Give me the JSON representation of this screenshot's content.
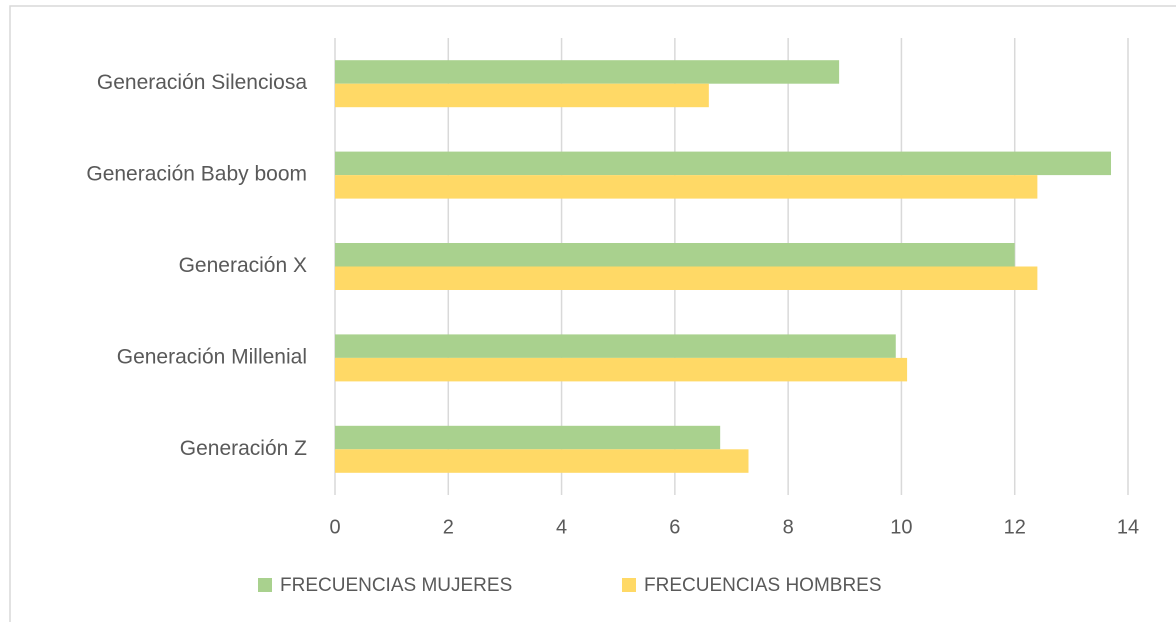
{
  "chart_data": {
    "type": "bar",
    "orientation": "horizontal",
    "categories": [
      "Generación Silenciosa",
      "Generación Baby boom",
      "Generación X",
      "Generación Millenial",
      "Generación Z"
    ],
    "series": [
      {
        "name": "FRECUENCIAS MUJERES",
        "color": "#a9d18e",
        "values": [
          8.9,
          13.7,
          12.0,
          9.9,
          6.8
        ]
      },
      {
        "name": "FRECUENCIAS HOMBRES",
        "color": "#ffd966",
        "values": [
          6.6,
          12.4,
          12.4,
          10.1,
          7.3
        ]
      }
    ],
    "xlim": [
      0,
      14
    ],
    "xticks": [
      0,
      2,
      4,
      6,
      8,
      10,
      12,
      14
    ],
    "grid": true,
    "legend": "bottom"
  }
}
